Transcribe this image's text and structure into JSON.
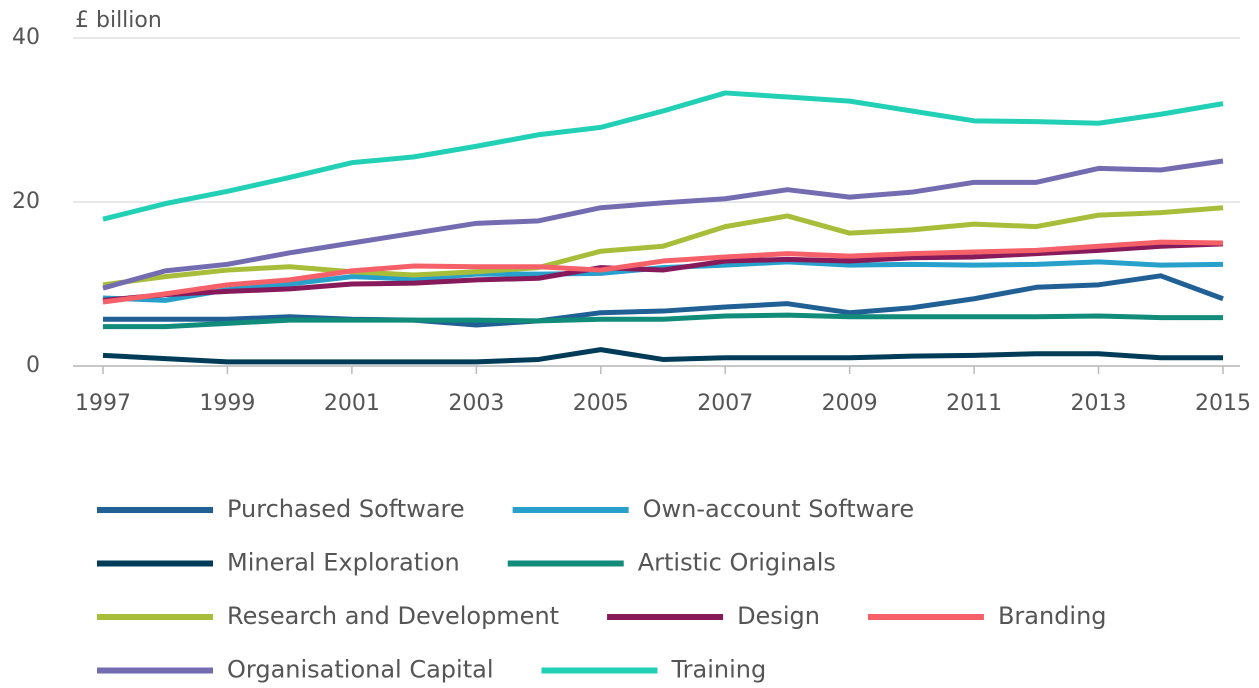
{
  "chart_data": {
    "type": "line",
    "title": "£ billion",
    "x": [
      1997,
      1998,
      1999,
      2000,
      2001,
      2002,
      2003,
      2004,
      2005,
      2006,
      2007,
      2008,
      2009,
      2010,
      2011,
      2012,
      2013,
      2014,
      2015
    ],
    "xlim": [
      1997,
      2015
    ],
    "xticks": [
      1997,
      1999,
      2001,
      2003,
      2005,
      2007,
      2009,
      2011,
      2013,
      2015
    ],
    "ylim": [
      0,
      40
    ],
    "yticks": [
      0,
      20,
      40
    ],
    "grid": true,
    "series": [
      {
        "name": "Purchased Software",
        "color": "#206095",
        "values": [
          5.7,
          5.7,
          5.7,
          6.0,
          5.7,
          5.6,
          5.0,
          5.5,
          6.5,
          6.7,
          7.2,
          7.6,
          6.5,
          7.1,
          8.2,
          9.6,
          9.9,
          11.0,
          8.2
        ]
      },
      {
        "name": "Own-account Software",
        "color": "#27a0cc",
        "values": [
          8.3,
          8.0,
          9.3,
          10.0,
          10.9,
          10.6,
          11.2,
          11.2,
          11.3,
          12.0,
          12.3,
          12.7,
          12.3,
          12.4,
          12.3,
          12.4,
          12.7,
          12.3,
          12.4
        ]
      },
      {
        "name": "Mineral Exploration",
        "color": "#003c57",
        "values": [
          1.3,
          0.9,
          0.5,
          0.5,
          0.5,
          0.5,
          0.5,
          0.8,
          2.0,
          0.8,
          1.0,
          1.0,
          1.0,
          1.2,
          1.3,
          1.5,
          1.5,
          1.0,
          1.0
        ]
      },
      {
        "name": "Artistic Originals",
        "color": "#118c7b",
        "values": [
          4.8,
          4.8,
          5.2,
          5.6,
          5.6,
          5.6,
          5.6,
          5.5,
          5.7,
          5.7,
          6.1,
          6.2,
          6.0,
          6.0,
          6.0,
          6.0,
          6.1,
          5.9,
          5.9
        ]
      },
      {
        "name": "Research and Development",
        "color": "#a8bd3a",
        "values": [
          9.9,
          10.9,
          11.7,
          12.1,
          11.5,
          11.1,
          11.5,
          12.0,
          14.0,
          14.6,
          17.0,
          18.3,
          16.2,
          16.6,
          17.3,
          17.0,
          18.4,
          18.7,
          19.3
        ]
      },
      {
        "name": "Design",
        "color": "#871a5b",
        "values": [
          8.0,
          8.7,
          9.1,
          9.4,
          10.0,
          10.1,
          10.5,
          10.7,
          12.0,
          11.7,
          12.8,
          13.0,
          12.8,
          13.2,
          13.3,
          13.7,
          14.1,
          14.6,
          14.9
        ]
      },
      {
        "name": "Branding",
        "color": "#f66068",
        "values": [
          7.8,
          8.8,
          9.9,
          10.5,
          11.6,
          12.2,
          12.1,
          12.1,
          11.7,
          12.8,
          13.3,
          13.7,
          13.4,
          13.7,
          13.9,
          14.1,
          14.6,
          15.1,
          15.0
        ]
      },
      {
        "name": "Organisational Capital",
        "color": "#746cb1",
        "values": [
          9.5,
          11.6,
          12.4,
          13.8,
          15.0,
          16.2,
          17.4,
          17.7,
          19.3,
          19.9,
          20.4,
          21.5,
          20.6,
          21.2,
          22.4,
          22.4,
          24.1,
          23.9,
          25.0
        ]
      },
      {
        "name": "Training",
        "color": "#22d0b6",
        "values": [
          17.9,
          19.8,
          21.3,
          23.0,
          24.8,
          25.5,
          26.8,
          28.2,
          29.1,
          31.1,
          33.3,
          32.8,
          32.3,
          31.1,
          29.9,
          29.8,
          29.6,
          30.7,
          32.0
        ]
      }
    ]
  }
}
